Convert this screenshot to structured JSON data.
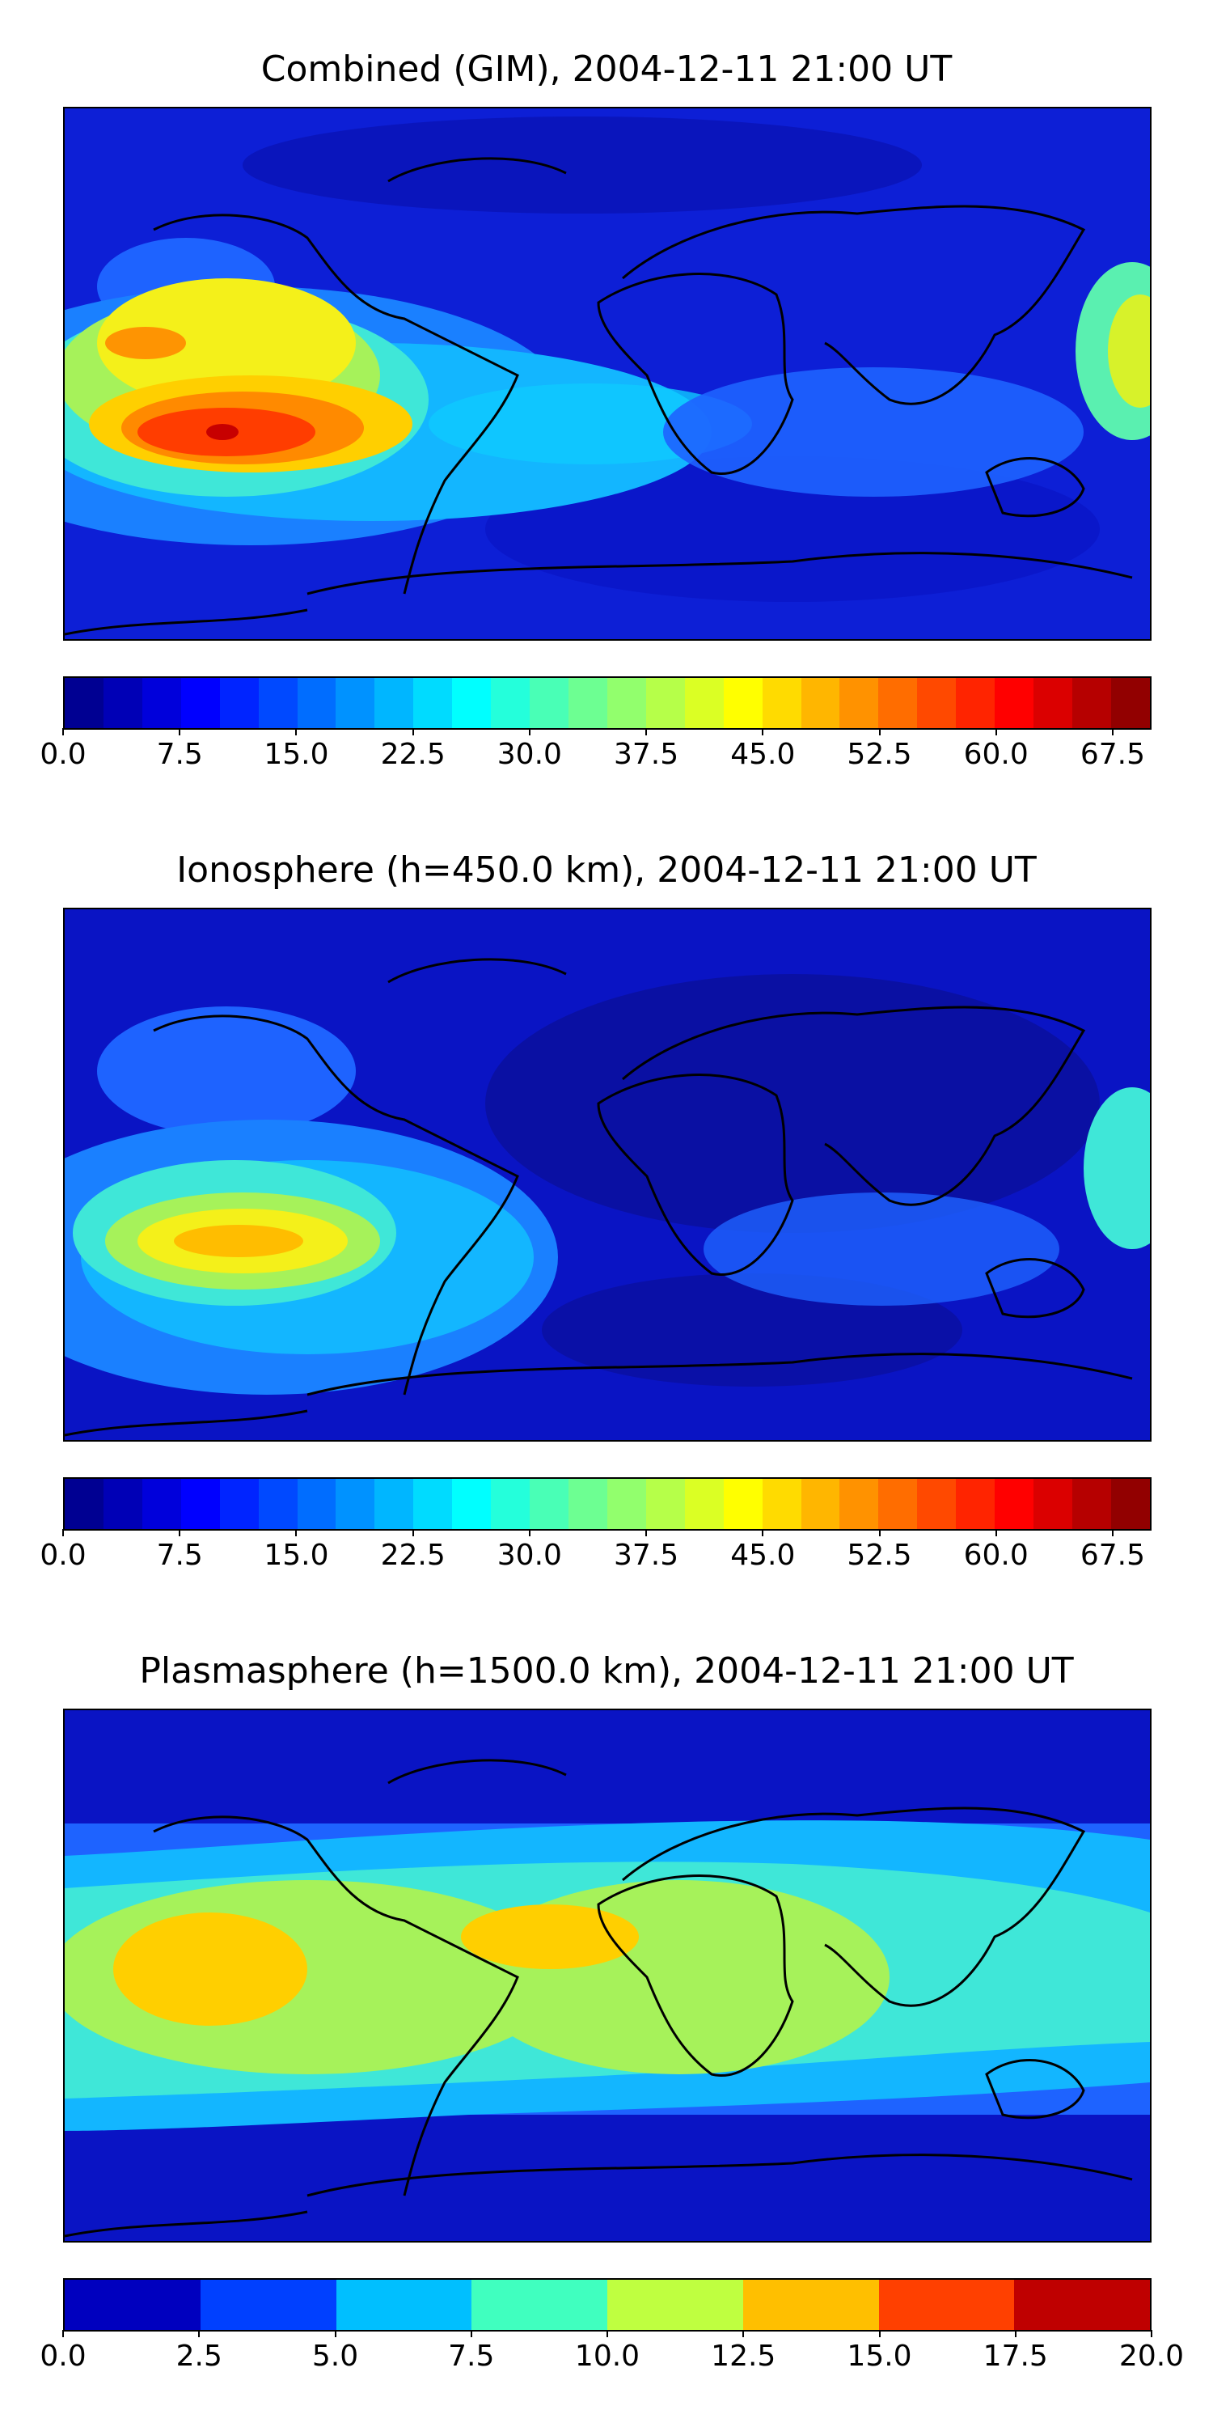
{
  "panels": [
    {
      "title": "Combined (GIM), 2004-12-11 21:00 UT",
      "layer": "combined",
      "colorbar": {
        "levels": 28,
        "colormap": "jet",
        "ticks": [
          "0.0",
          "7.5",
          "15.0",
          "22.5",
          "30.0",
          "37.5",
          "45.0",
          "52.5",
          "60.0",
          "67.5"
        ],
        "tick_values": [
          0,
          7.5,
          15,
          22.5,
          30,
          37.5,
          45,
          52.5,
          60,
          67.5
        ],
        "vmin": 0,
        "vmax": 70
      }
    },
    {
      "title": "Ionosphere  (h=450.0 km), 2004-12-11 21:00 UT",
      "layer": "ionosphere",
      "colorbar": {
        "levels": 28,
        "colormap": "jet",
        "ticks": [
          "0.0",
          "7.5",
          "15.0",
          "22.5",
          "30.0",
          "37.5",
          "45.0",
          "52.5",
          "60.0",
          "67.5"
        ],
        "tick_values": [
          0,
          7.5,
          15,
          22.5,
          30,
          37.5,
          45,
          52.5,
          60,
          67.5
        ],
        "vmin": 0,
        "vmax": 70
      }
    },
    {
      "title": "Plasmasphere (h=1500.0 km), 2004-12-11 21:00 UT",
      "layer": "plasmasphere",
      "colorbar": {
        "levels": 8,
        "colormap": "jet",
        "ticks": [
          "0.0",
          "2.5",
          "5.0",
          "7.5",
          "10.0",
          "12.5",
          "15.0",
          "17.5",
          "20.0"
        ],
        "tick_values": [
          0,
          2.5,
          5,
          7.5,
          10,
          12.5,
          15,
          17.5,
          20
        ],
        "vmin": 0,
        "vmax": 20
      }
    }
  ],
  "colors": {
    "coastline": "#000000",
    "background": "#ffffff"
  }
}
